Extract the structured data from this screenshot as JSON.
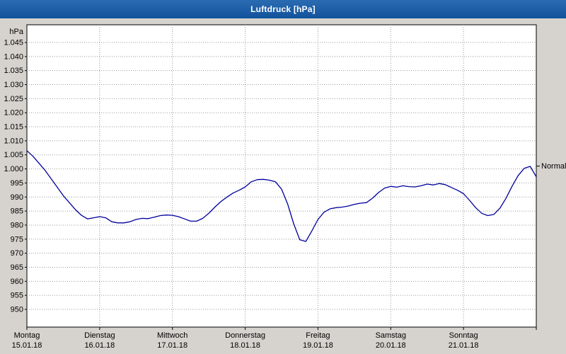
{
  "window": {
    "title": "Luftdruck [hPa]"
  },
  "chart_data": {
    "type": "line",
    "title": "Luftdruck [hPa]",
    "unit_label": "hPa",
    "xlabel": "",
    "ylabel": "hPa",
    "ylim": [
      950,
      1045
    ],
    "ytick_step": 5,
    "ytick_values": [
      1045,
      1040,
      1035,
      1030,
      1025,
      1020,
      1015,
      1010,
      1005,
      1000,
      995,
      990,
      985,
      980,
      975,
      970,
      965,
      960,
      955,
      950
    ],
    "ytick_labels": [
      "1.045",
      "1.040",
      "1.035",
      "1.030",
      "1.025",
      "1.020",
      "1.015",
      "1.010",
      "1.005",
      "1.000",
      "995",
      "990",
      "985",
      "980",
      "975",
      "970",
      "965",
      "960",
      "955",
      "950"
    ],
    "x_range_hours": [
      0,
      168
    ],
    "grid": "dotted",
    "legend_position": "none",
    "days": [
      {
        "name": "Montag",
        "date": "15.01.18"
      },
      {
        "name": "Dienstag",
        "date": "16.01.18"
      },
      {
        "name": "Mittwoch",
        "date": "17.01.18"
      },
      {
        "name": "Donnerstag",
        "date": "18.01.18"
      },
      {
        "name": "Freitag",
        "date": "19.01.18"
      },
      {
        "name": "Samstag",
        "date": "20.01.18"
      },
      {
        "name": "Sonntag",
        "date": "21.01.18"
      }
    ],
    "normal_marker": {
      "label": "Normal",
      "value": 1001
    },
    "series": [
      {
        "name": "Luftdruck",
        "color": "#00009c",
        "x_hours": [
          0,
          2,
          4,
          6,
          8,
          10,
          12,
          14,
          16,
          18,
          20,
          22,
          24,
          26,
          28,
          30,
          32,
          34,
          36,
          38,
          40,
          42,
          44,
          46,
          48,
          50,
          52,
          54,
          56,
          58,
          60,
          62,
          64,
          66,
          68,
          70,
          72,
          74,
          76,
          78,
          80,
          82,
          84,
          86,
          88,
          90,
          92,
          94,
          96,
          98,
          100,
          102,
          104,
          106,
          108,
          110,
          112,
          114,
          116,
          118,
          120,
          122,
          124,
          126,
          128,
          130,
          132,
          134,
          136,
          138,
          140,
          142,
          144,
          146,
          148,
          150,
          152,
          154,
          156,
          158,
          160,
          162,
          164,
          166,
          168
        ],
        "values": [
          1006.5,
          1004.5,
          1002,
          999.5,
          996.5,
          993.5,
          990.5,
          988,
          985.5,
          983.5,
          982.2,
          982.6,
          983,
          982.6,
          981.2,
          980.8,
          980.8,
          981.2,
          982,
          982.4,
          982.3,
          982.8,
          983.4,
          983.6,
          983.5,
          983,
          982.2,
          981.4,
          981.4,
          982.4,
          984.2,
          986.4,
          988.4,
          990,
          991.4,
          992.4,
          993.6,
          995.4,
          996.2,
          996.3,
          996,
          995.4,
          992.8,
          987.5,
          980.5,
          974.8,
          974.2,
          978,
          982,
          984.6,
          985.8,
          986.2,
          986.4,
          986.8,
          987.4,
          987.8,
          988,
          989.6,
          991.6,
          993.2,
          993.8,
          993.5,
          994,
          993.7,
          993.6,
          994,
          994.6,
          994.3,
          994.8,
          994.4,
          993.4,
          992.4,
          991.2,
          988.8,
          986.2,
          984.2,
          983.4,
          983.8,
          986,
          989.5,
          993.8,
          997.6,
          1000.2,
          1000.9,
          997.2
        ]
      }
    ],
    "colors": {
      "line": "#00009c",
      "grid": "#999999",
      "plot_bg": "#ffffff",
      "frame": "#000000",
      "titlebar": "#1563a8",
      "window_bg": "#d6d3ce"
    }
  }
}
